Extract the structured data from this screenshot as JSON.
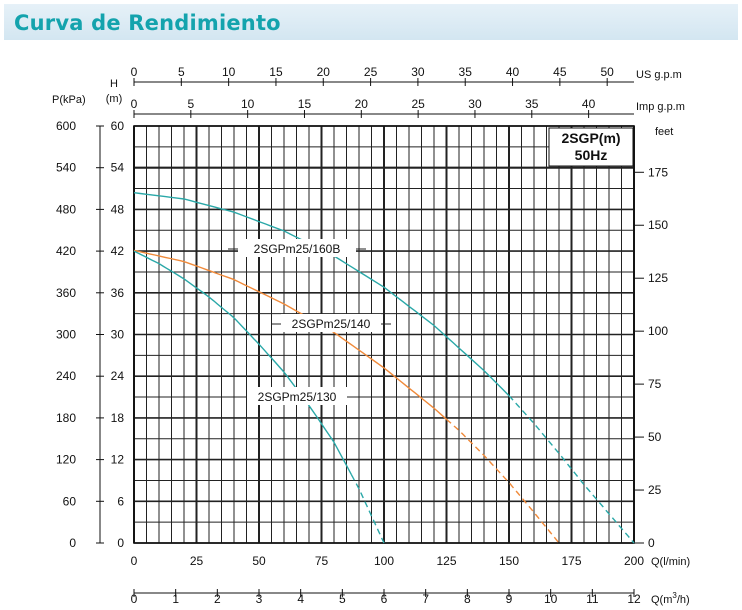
{
  "page": {
    "title": "Curva de Rendimiento"
  },
  "chart_data": {
    "type": "line",
    "title": "2SGP(m)",
    "subtitle": "50Hz",
    "x_flow_lmin": {
      "label": "Q(l/min)",
      "range": [
        0,
        200
      ],
      "ticks": [
        0,
        25,
        50,
        75,
        100,
        125,
        150,
        175,
        200
      ]
    },
    "x_flow_m3h": {
      "label_prefix": "Q(m",
      "label_sup": "3",
      "label_suffix": "/h)",
      "range": [
        0,
        12
      ],
      "ticks": [
        0,
        1,
        2,
        3,
        4,
        5,
        6,
        7,
        8,
        9,
        10,
        11,
        12
      ]
    },
    "x_us_gpm": {
      "label": "US  g.p.m",
      "ticks": [
        0,
        5,
        10,
        15,
        20,
        25,
        30,
        35,
        40,
        45,
        50
      ]
    },
    "x_imp_gpm": {
      "label": "Imp  g.p.m",
      "ticks": [
        0,
        5,
        10,
        15,
        20,
        25,
        30,
        35,
        40
      ]
    },
    "y_pressure": {
      "label": "P(kPa)",
      "range": [
        0,
        600
      ],
      "ticks": [
        0,
        60,
        120,
        180,
        240,
        300,
        360,
        420,
        480,
        540,
        600
      ]
    },
    "y_head_m": {
      "label_top": "H",
      "label_bottom": "(m)",
      "range": [
        0,
        60
      ],
      "ticks": [
        0,
        6,
        12,
        18,
        24,
        30,
        36,
        42,
        48,
        54,
        60
      ]
    },
    "y_head_ft": {
      "label": "feet",
      "ticks": [
        0,
        25,
        50,
        75,
        100,
        125,
        150,
        175
      ]
    },
    "grid": true,
    "series": [
      {
        "name": "2SGPm25/160B",
        "color": "#2aa8a8",
        "x": [
          0,
          20,
          40,
          60,
          80,
          100,
          120,
          140,
          150,
          160,
          170,
          180,
          190,
          200
        ],
        "y": [
          50.4,
          49.5,
          47.6,
          44.9,
          41.3,
          36.8,
          31.3,
          24.8,
          21.2,
          17.2,
          12.9,
          8.4,
          4.2,
          0
        ],
        "dashed_from_x": 150
      },
      {
        "name": "2SGPm25/140",
        "color": "#f08a3a",
        "x": [
          0,
          20,
          40,
          60,
          80,
          100,
          120,
          130,
          140,
          150,
          160,
          170
        ],
        "y": [
          42.1,
          40.5,
          37.9,
          34.4,
          30.3,
          25.2,
          19.4,
          16.2,
          12.6,
          8.7,
          4.4,
          0
        ],
        "dashed_from_x": 125
      },
      {
        "name": "2SGPm25/130",
        "color": "#2aa8a8",
        "x": [
          0,
          10,
          20,
          30,
          40,
          50,
          60,
          70,
          80,
          90,
          100
        ],
        "y": [
          42.0,
          40.2,
          38.0,
          35.4,
          32.4,
          28.6,
          24.6,
          19.8,
          14.5,
          7.8,
          0
        ],
        "dashed_from_x": 87
      }
    ],
    "legend_position": "inline labels"
  }
}
